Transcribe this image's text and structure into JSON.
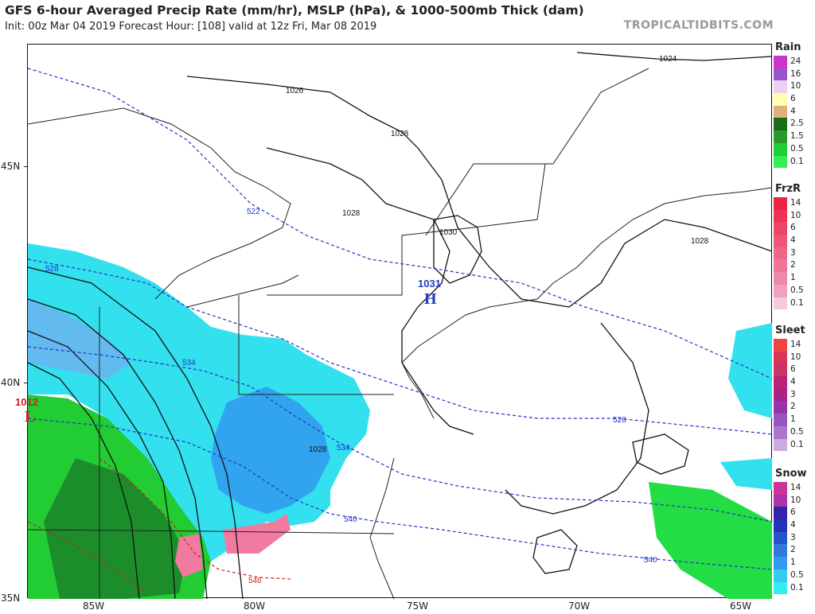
{
  "header": {
    "title": "GFS 6-hour Averaged Precip Rate (mm/hr), MSLP (hPa), & 1000-500mb Thick (dam)",
    "subtitle": "Init: 00z Mar 04 2019   Forecast Hour: [108]   valid at 12z Fri, Mar 08 2019",
    "credit": "TROPICALTIDBITS.COM"
  },
  "axes": {
    "lat_labels": [
      "45N",
      "40N",
      "35N"
    ],
    "lon_labels": [
      "85W",
      "80W",
      "75W",
      "70W",
      "65W"
    ]
  },
  "pressure_centers": {
    "high": {
      "letter": "H",
      "value": "1031",
      "color": "#1f3fbf"
    },
    "low": {
      "letter": "L",
      "value": "1012",
      "color": "#cc2222"
    }
  },
  "isobar_labels": [
    "1024",
    "1026",
    "1028",
    "1028",
    "1028",
    "1030",
    "1028"
  ],
  "thickness_labels": [
    "522",
    "528",
    "534",
    "534",
    "528",
    "540",
    "540",
    "546"
  ],
  "legends": [
    {
      "title": "Rain",
      "values": [
        "24",
        "16",
        "10",
        "6",
        "4",
        "2.5",
        "1.5",
        "0.5",
        "0.1"
      ],
      "colors": [
        "#cc33cc",
        "#9955cc",
        "#f0d0f0",
        "#ffffb0",
        "#e0b07a",
        "#1a6a1a",
        "#2a9a2a",
        "#22cc33",
        "#33ee55"
      ]
    },
    {
      "title": "FrzR",
      "values": [
        "14",
        "10",
        "6",
        "4",
        "3",
        "2",
        "1",
        "0.5",
        "0.1"
      ],
      "colors": [
        "#ee2244",
        "#ee3355",
        "#ee4466",
        "#ee5577",
        "#ee6688",
        "#ee7799",
        "#ee88aa",
        "#f0a0c0",
        "#f8c8dc"
      ]
    },
    {
      "title": "Sleet",
      "values": [
        "14",
        "10",
        "6",
        "4",
        "3",
        "2",
        "1",
        "0.5",
        "0.1"
      ],
      "colors": [
        "#ee4444",
        "#dd3355",
        "#cc3366",
        "#bb2277",
        "#aa2288",
        "#9933aa",
        "#9955bb",
        "#aa77cc",
        "#ccaadd"
      ]
    },
    {
      "title": "Snow",
      "values": [
        "14",
        "10",
        "6",
        "4",
        "3",
        "2",
        "1",
        "0.5",
        "0.1"
      ],
      "colors": [
        "#cc3399",
        "#aa33aa",
        "#3322aa",
        "#2233bb",
        "#2255cc",
        "#3377dd",
        "#3399ee",
        "#33ccee",
        "#33eeee"
      ]
    }
  ],
  "colors": {
    "isobar": "#111111",
    "thickness_cold": "#2233cc",
    "thickness_warm": "#cc2222",
    "borders": "#aaaaaa",
    "rain_green": "#22aa33",
    "rain_dark": "#1a7a2a",
    "snow_cyan": "#33e0ee",
    "snow_blue": "#3399ee",
    "mix_pink": "#f07aa0"
  }
}
